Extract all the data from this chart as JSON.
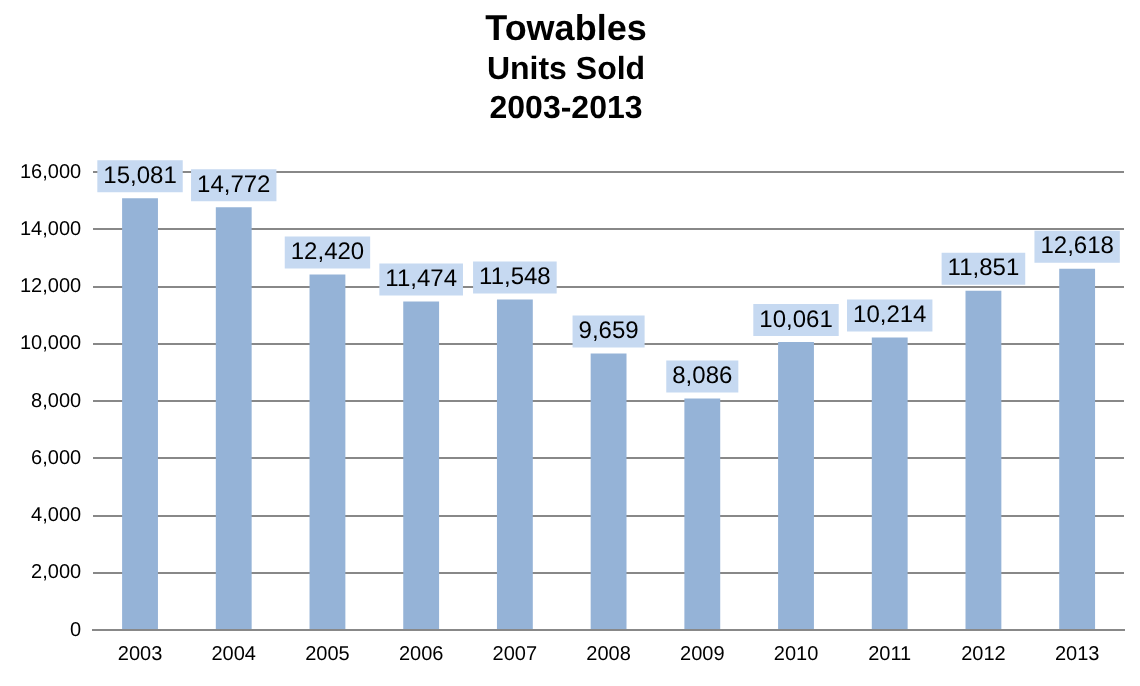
{
  "chart_data": {
    "type": "bar",
    "title": "Towables",
    "subtitle": "Units Sold\n2003-2013",
    "categories": [
      "2003",
      "2004",
      "2005",
      "2006",
      "2007",
      "2008",
      "2009",
      "2010",
      "2011",
      "2012",
      "2013"
    ],
    "values": [
      15081,
      14772,
      12420,
      11474,
      11548,
      9659,
      8086,
      10061,
      10214,
      11851,
      12618
    ],
    "value_labels": [
      "15,081",
      "14,772",
      "12,420",
      "11,474",
      "11,548",
      "9,659",
      "8,086",
      "10,061",
      "10,214",
      "11,851",
      "12,618"
    ],
    "color": "#95b3d7",
    "ylim": [
      0,
      16000
    ],
    "yticks": [
      0,
      {
        "value": 2000,
        "label": "2,000"
      },
      {
        "value": 4000,
        "label": "4,000"
      },
      {
        "value": 6000,
        "label": "6,000"
      },
      {
        "value": 8000,
        "label": "8,000"
      },
      {
        "value": 10000,
        "label": "10,000"
      },
      {
        "value": 12000,
        "label": "12,000"
      },
      {
        "value": 14000,
        "label": "14,000"
      },
      {
        "value": 16000,
        "label": "16,000"
      }
    ],
    "grid": "y",
    "legend": false
  }
}
